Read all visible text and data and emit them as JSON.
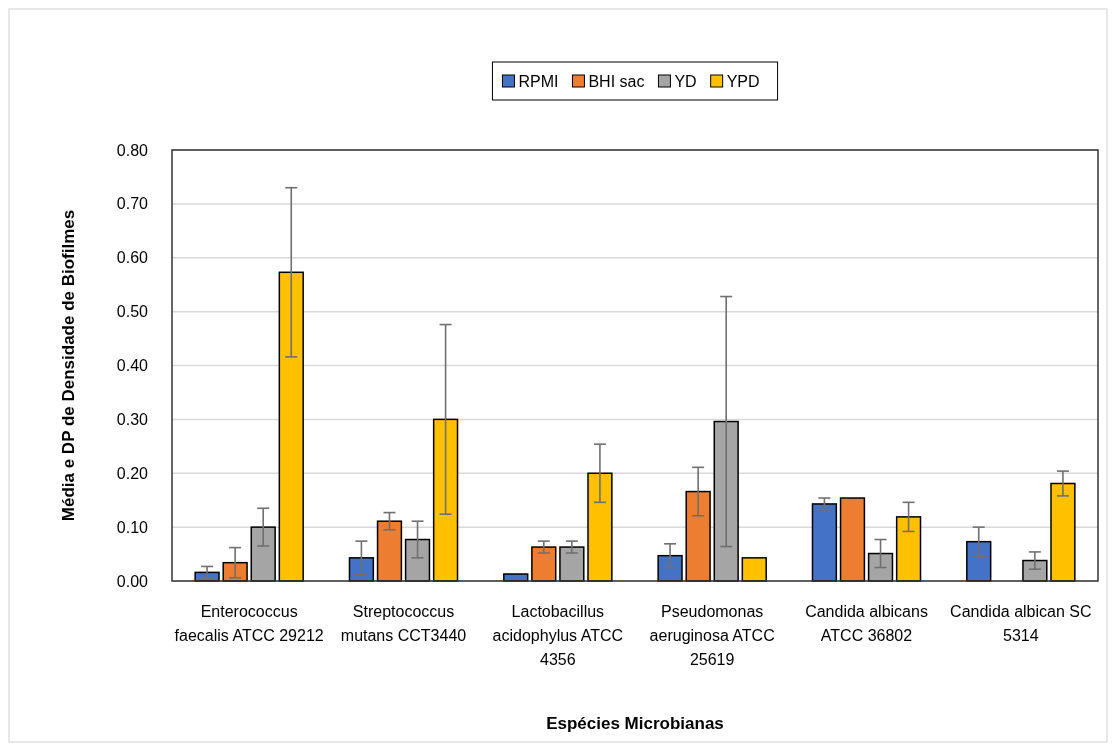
{
  "chart_data": {
    "type": "bar",
    "xlabel": "Espécies Microbianas",
    "ylabel": "Média e DP de Densidade de Biofilmes",
    "categories": [
      "Enterococcus faecalis ATCC 29212",
      "Streptococcus mutans CCT3440",
      "Lactobacillus acidophylus ATCC 4356",
      "Pseudomonas aeruginosa ATCC 25619",
      "Candida albicans ATCC 36802",
      "Candida albican SC 5314"
    ],
    "series": [
      {
        "name": "RPMI",
        "color": "#4472c4",
        "values": [
          0.016,
          0.043,
          0.013,
          0.047,
          0.143,
          0.073
        ],
        "errors": [
          0.011,
          0.031,
          null,
          0.022,
          0.011,
          0.027
        ]
      },
      {
        "name": "BHI sac",
        "color": "#ed7d31",
        "values": [
          0.034,
          0.111,
          0.063,
          0.166,
          0.154,
          null
        ],
        "errors": [
          0.028,
          0.016,
          0.011,
          0.045,
          null,
          null
        ]
      },
      {
        "name": "YD",
        "color": "#a5a5a5",
        "values": [
          0.1,
          0.077,
          0.063,
          0.296,
          0.051,
          0.038
        ],
        "errors": [
          0.035,
          0.034,
          0.011,
          0.232,
          0.026,
          0.016
        ]
      },
      {
        "name": "YPD",
        "color": "#ffc000",
        "values": [
          0.573,
          0.3,
          0.2,
          0.043,
          0.119,
          0.181
        ],
        "errors": [
          0.157,
          0.176,
          0.054,
          null,
          0.027,
          0.023
        ]
      }
    ],
    "ylim": [
      0,
      0.8
    ],
    "yticks": [
      {
        "value": 0,
        "label": "0.00"
      },
      {
        "value": 0.1,
        "label": "0.10"
      },
      {
        "value": 0.2,
        "label": "0.20"
      },
      {
        "value": 0.3,
        "label": "0.30"
      },
      {
        "value": 0.4,
        "label": "0.40"
      },
      {
        "value": 0.5,
        "label": "0.50"
      },
      {
        "value": 0.6,
        "label": "0.60"
      },
      {
        "value": 0.7,
        "label": "0.70"
      },
      {
        "value": 0.8,
        "label": "0.80"
      }
    ],
    "grid": "y",
    "legend": "top"
  }
}
